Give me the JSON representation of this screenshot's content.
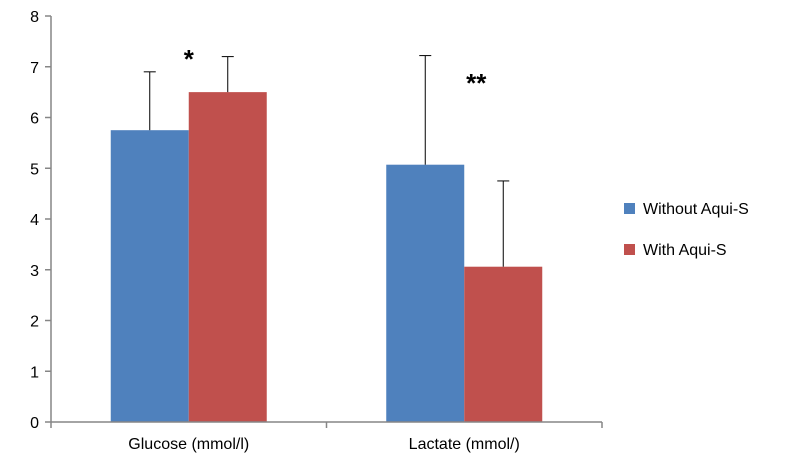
{
  "chart_data": {
    "type": "bar",
    "categories": [
      "Glucose (mmol/l)",
      "Lactate (mmol/)"
    ],
    "series": [
      {
        "name": "Without Aqui-S",
        "color": "#4f81bd",
        "values": [
          5.75,
          5.07
        ],
        "error_plus": [
          1.15,
          2.15
        ]
      },
      {
        "name": "With Aqui-S",
        "color": "#c0504d",
        "values": [
          6.5,
          3.06
        ],
        "error_plus": [
          0.7,
          1.69
        ]
      }
    ],
    "annotations": [
      "*",
      "**"
    ],
    "ylim": [
      0,
      8
    ],
    "yticks": [
      "0",
      "1",
      "2",
      "3",
      "4",
      "5",
      "6",
      "7",
      "8"
    ],
    "grid": false,
    "legend": "right"
  }
}
